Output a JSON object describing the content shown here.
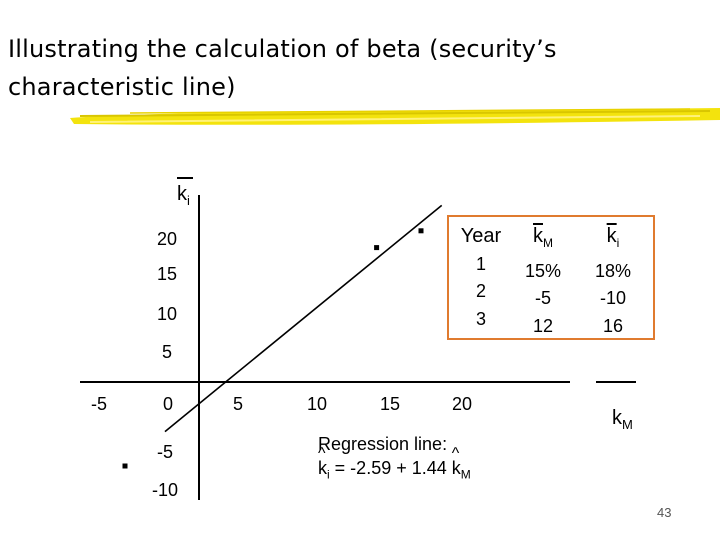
{
  "title": "Illustrating the calculation of beta (security’s characteristic line)",
  "chart_data": {
    "type": "scatter",
    "title": "",
    "xlabel": "k",
    "xlabel_sub": "M",
    "ylabel": "k",
    "ylabel_sub": "i",
    "xlim": [
      -5,
      20
    ],
    "ylim": [
      -10,
      20
    ],
    "x_ticks": [
      "-5",
      "0",
      "5",
      "10",
      "15",
      "20"
    ],
    "y_ticks_pos": [
      "20",
      "15",
      "10",
      "5"
    ],
    "y_ticks_neg": [
      "-5",
      "-10"
    ],
    "points": [
      {
        "year": "1",
        "x": 15,
        "y": 18
      },
      {
        "year": "2",
        "x": -5,
        "y": -10
      },
      {
        "year": "3",
        "x": 12,
        "y": 16
      }
    ],
    "regression": {
      "intercept": -2.59,
      "slope": 1.44
    }
  },
  "table": {
    "year_header": "Year",
    "km_header": "k",
    "km_sub": "M",
    "ki_header": "k",
    "ki_sub": "i",
    "years": [
      "1",
      "2",
      "3"
    ],
    "km": [
      "15%",
      "-5",
      "12"
    ],
    "ki": [
      "18%",
      "-10",
      "16"
    ]
  },
  "regression_text": {
    "label": "Regression line:",
    "hat": "^",
    "lhs": "k",
    "lhs_sub": "i",
    "equation": " = -2.59 + 1.44 ",
    "rhs": "k",
    "rhs_sub": "M"
  },
  "page_number": "43",
  "colors": {
    "table_border": "#e07b2f",
    "brush": "#f2e200"
  }
}
